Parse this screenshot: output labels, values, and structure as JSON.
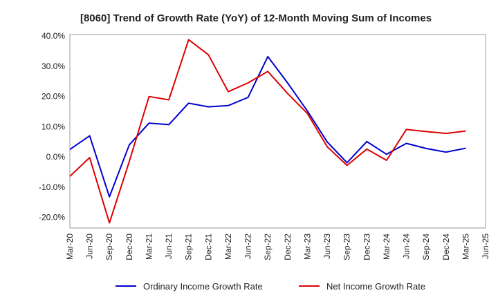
{
  "title": "[8060]  Trend of Growth Rate (YoY) of 12-Month Moving Sum of Incomes",
  "chart_data": {
    "type": "line",
    "title": "[8060]  Trend of Growth Rate (YoY) of 12-Month Moving Sum of Incomes",
    "xlabel": "",
    "ylabel": "",
    "x_tick_labels": [
      "Mar-20",
      "Jun-20",
      "Sep-20",
      "Dec-20",
      "Mar-21",
      "Jun-21",
      "Sep-21",
      "Dec-21",
      "Mar-22",
      "Jun-22",
      "Sep-22",
      "Dec-22",
      "Mar-23",
      "Jun-23",
      "Sep-23",
      "Dec-23",
      "Mar-24",
      "Jun-24",
      "Sep-24",
      "Dec-24",
      "Mar-25",
      "Jun-25"
    ],
    "y_tick_labels": [
      "40.0%",
      "30.0%",
      "20.0%",
      "10.0%",
      "0.0%",
      "-10.0%",
      "-20.0%"
    ],
    "y_ticks": [
      40,
      30,
      20,
      10,
      0,
      -10,
      -20
    ],
    "ylim": [
      -23.5,
      40.5
    ],
    "grid": true,
    "legend_position": "bottom",
    "series": [
      {
        "name": "Ordinary Income Growth Rate",
        "color": "#0000cc",
        "values": [
          2.5,
          7.0,
          -13.2,
          4.0,
          11.2,
          10.7,
          17.8,
          16.6,
          17.0,
          19.7,
          33.2,
          24.5,
          15.2,
          5.0,
          -1.9,
          5.1,
          0.9,
          4.5,
          2.8,
          1.6,
          2.9,
          null
        ]
      },
      {
        "name": "Net Income Growth Rate",
        "color": "#dd0000",
        "values": [
          -6.4,
          -0.2,
          -21.8,
          -1.5,
          20.0,
          18.9,
          38.8,
          33.8,
          21.6,
          24.5,
          28.3,
          21.0,
          14.4,
          3.4,
          -2.8,
          2.6,
          -1.1,
          9.1,
          8.4,
          7.8,
          8.6,
          null
        ]
      }
    ]
  }
}
